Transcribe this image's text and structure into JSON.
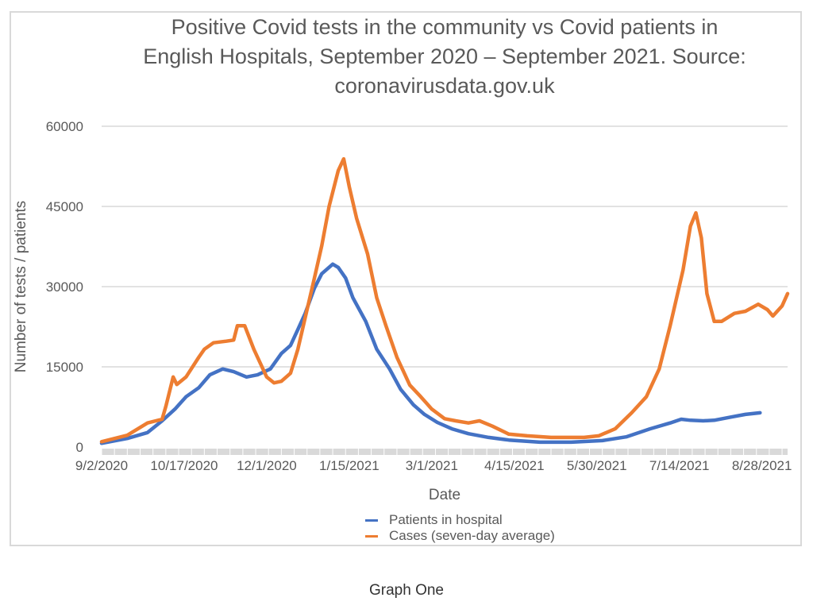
{
  "caption": "Graph One",
  "chart_data": {
    "type": "line",
    "title": "Positive Covid tests in the community vs Covid patients in English Hospitals, September 2020 – September 2021. Source: coronavirusdata.gov.uk",
    "title_lines": [
      "Positive Covid tests in the community vs Covid patients in",
      "English Hospitals, September 2020 – September 2021. Source:",
      "coronavirusdata.gov.uk"
    ],
    "xlabel": "Date",
    "ylabel": "Number of tests / patients",
    "x_start_date": "9/2/2020",
    "x_range_days": [
      0,
      374
    ],
    "x_tick_days": [
      0,
      45,
      90,
      135,
      180,
      225,
      270,
      315,
      360
    ],
    "x_tick_labels": [
      "9/2/2020",
      "10/17/2020",
      "12/1/2020",
      "1/15/2021",
      "3/1/2021",
      "4/15/2021",
      "5/30/2021",
      "7/14/2021",
      "8/28/2021"
    ],
    "ylim": [
      0,
      60000
    ],
    "y_ticks": [
      0,
      15000,
      30000,
      45000,
      60000
    ],
    "y_tick_labels": [
      "0",
      "15000",
      "30000",
      "45000",
      "60000"
    ],
    "grid": true,
    "legend_position": "bottom",
    "series": [
      {
        "name": "Patients in hospital",
        "color": "#4472C4",
        "x_days": [
          0,
          14,
          25,
          33,
          40,
          46,
          53,
          59,
          66,
          72,
          79,
          85,
          92,
          98,
          103,
          107,
          111,
          116,
          120,
          126,
          129,
          133,
          137,
          144,
          150,
          157,
          163,
          170,
          176,
          183,
          191,
          200,
          211,
          222,
          239,
          256,
          273,
          286,
          299,
          310,
          316,
          321,
          328,
          334,
          343,
          351,
          359
        ],
        "values": [
          700,
          1600,
          2700,
          4900,
          7100,
          9400,
          11100,
          13500,
          14600,
          14100,
          13100,
          13500,
          14600,
          17500,
          19000,
          22000,
          25000,
          29700,
          32400,
          34200,
          33600,
          31600,
          27900,
          23500,
          18300,
          14600,
          10800,
          7900,
          6100,
          4600,
          3400,
          2500,
          1800,
          1300,
          900,
          900,
          1200,
          1900,
          3400,
          4500,
          5200,
          5000,
          4900,
          5000,
          5600,
          6100,
          6400
        ]
      },
      {
        "name": "Cases (seven-day average)",
        "color": "#ED7D31",
        "x_days": [
          0,
          14,
          25,
          33,
          35,
          39,
          41,
          46,
          53,
          56,
          61,
          68,
          72,
          74,
          78,
          83,
          90,
          94,
          98,
          103,
          107,
          111,
          116,
          120,
          124,
          129,
          132,
          135,
          139,
          145,
          150,
          155,
          161,
          168,
          174,
          180,
          187,
          193,
          200,
          206,
          213,
          222,
          232,
          245,
          254,
          263,
          271,
          280,
          289,
          297,
          304,
          310,
          317,
          321,
          324,
          327,
          330,
          334,
          338,
          345,
          351,
          358,
          363,
          366,
          371,
          374
        ],
        "values": [
          1000,
          2200,
          4500,
          5200,
          7600,
          13100,
          11700,
          13100,
          16800,
          18300,
          19500,
          19800,
          20000,
          22700,
          22700,
          18300,
          13100,
          12000,
          12300,
          13800,
          18300,
          24200,
          31600,
          37600,
          45000,
          51700,
          53900,
          48700,
          42800,
          36100,
          27900,
          22700,
          16800,
          11600,
          9400,
          7100,
          5300,
          4900,
          4500,
          4900,
          3900,
          2400,
          2100,
          1800,
          1800,
          1800,
          2100,
          3400,
          6400,
          9400,
          14600,
          22700,
          33100,
          41300,
          43800,
          39100,
          28700,
          23500,
          23500,
          25000,
          25400,
          26700,
          25700,
          24500,
          26400,
          28700
        ]
      }
    ]
  }
}
